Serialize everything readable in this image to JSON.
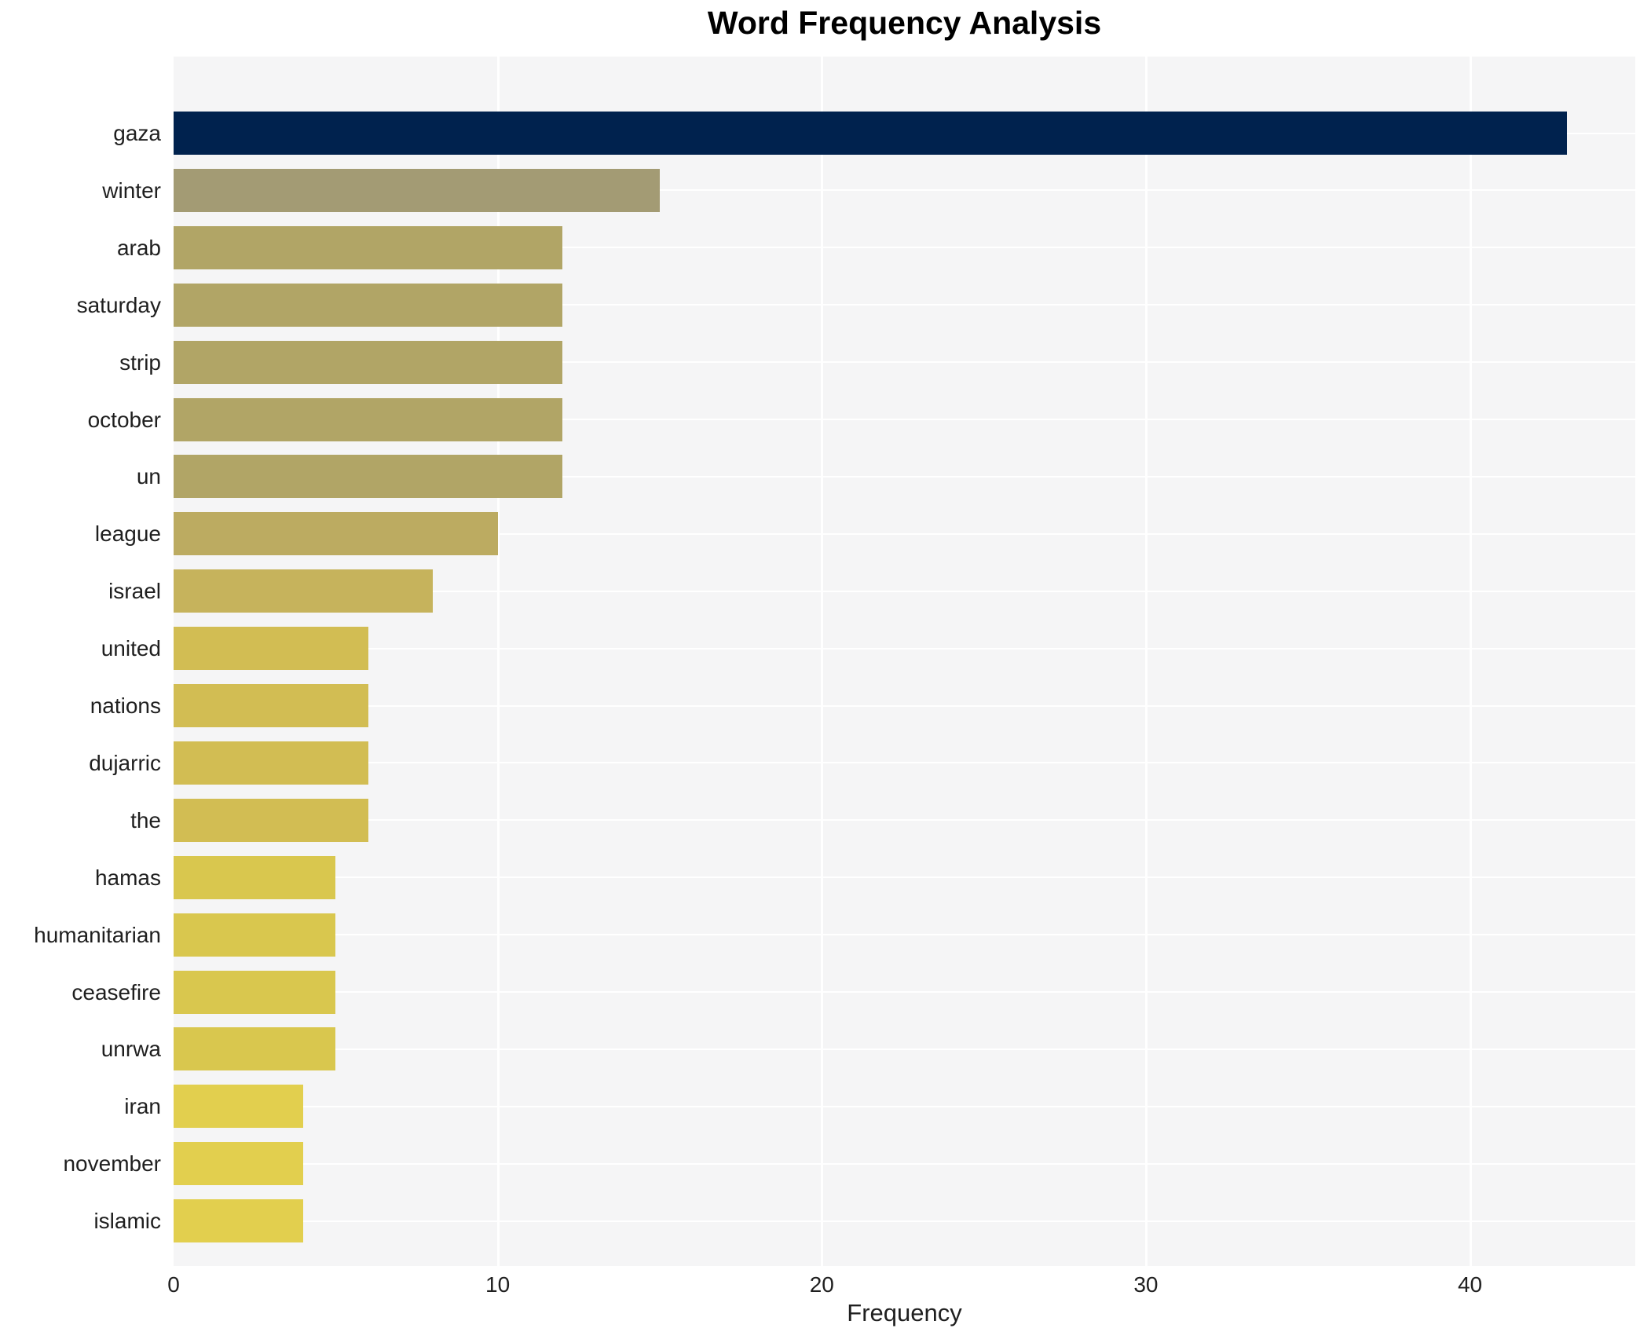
{
  "chart_data": {
    "type": "bar",
    "orientation": "horizontal",
    "title": "Word Frequency Analysis",
    "xlabel": "Frequency",
    "ylabel": "",
    "categories": [
      "gaza",
      "winter",
      "arab",
      "saturday",
      "strip",
      "october",
      "un",
      "league",
      "israel",
      "united",
      "nations",
      "dujarric",
      "the",
      "hamas",
      "humanitarian",
      "ceasefire",
      "unrwa",
      "iran",
      "november",
      "islamic"
    ],
    "values": [
      43,
      15,
      12,
      12,
      12,
      12,
      12,
      10,
      8,
      6,
      6,
      6,
      6,
      5,
      5,
      5,
      5,
      4,
      4,
      4
    ],
    "bar_colors": [
      "#00224e",
      "#a39b74",
      "#b1a566",
      "#b1a566",
      "#b1a566",
      "#b1a566",
      "#b1a566",
      "#bcab61",
      "#c6b35c",
      "#d2bd53",
      "#d2bd53",
      "#d2bd53",
      "#d2bd53",
      "#d9c74e",
      "#d9c74e",
      "#d9c74e",
      "#d9c74e",
      "#e2cf4e",
      "#e2cf4e",
      "#e2cf4e"
    ],
    "xlim": [
      0,
      45.1
    ],
    "xticks": [
      0,
      10,
      20,
      30,
      40
    ],
    "grid": true,
    "legend": "none",
    "plot_bg_color": "#f5f5f6",
    "grid_color": "#ffffff",
    "title_color": "#000000",
    "text_color": "#1f1f1f"
  }
}
